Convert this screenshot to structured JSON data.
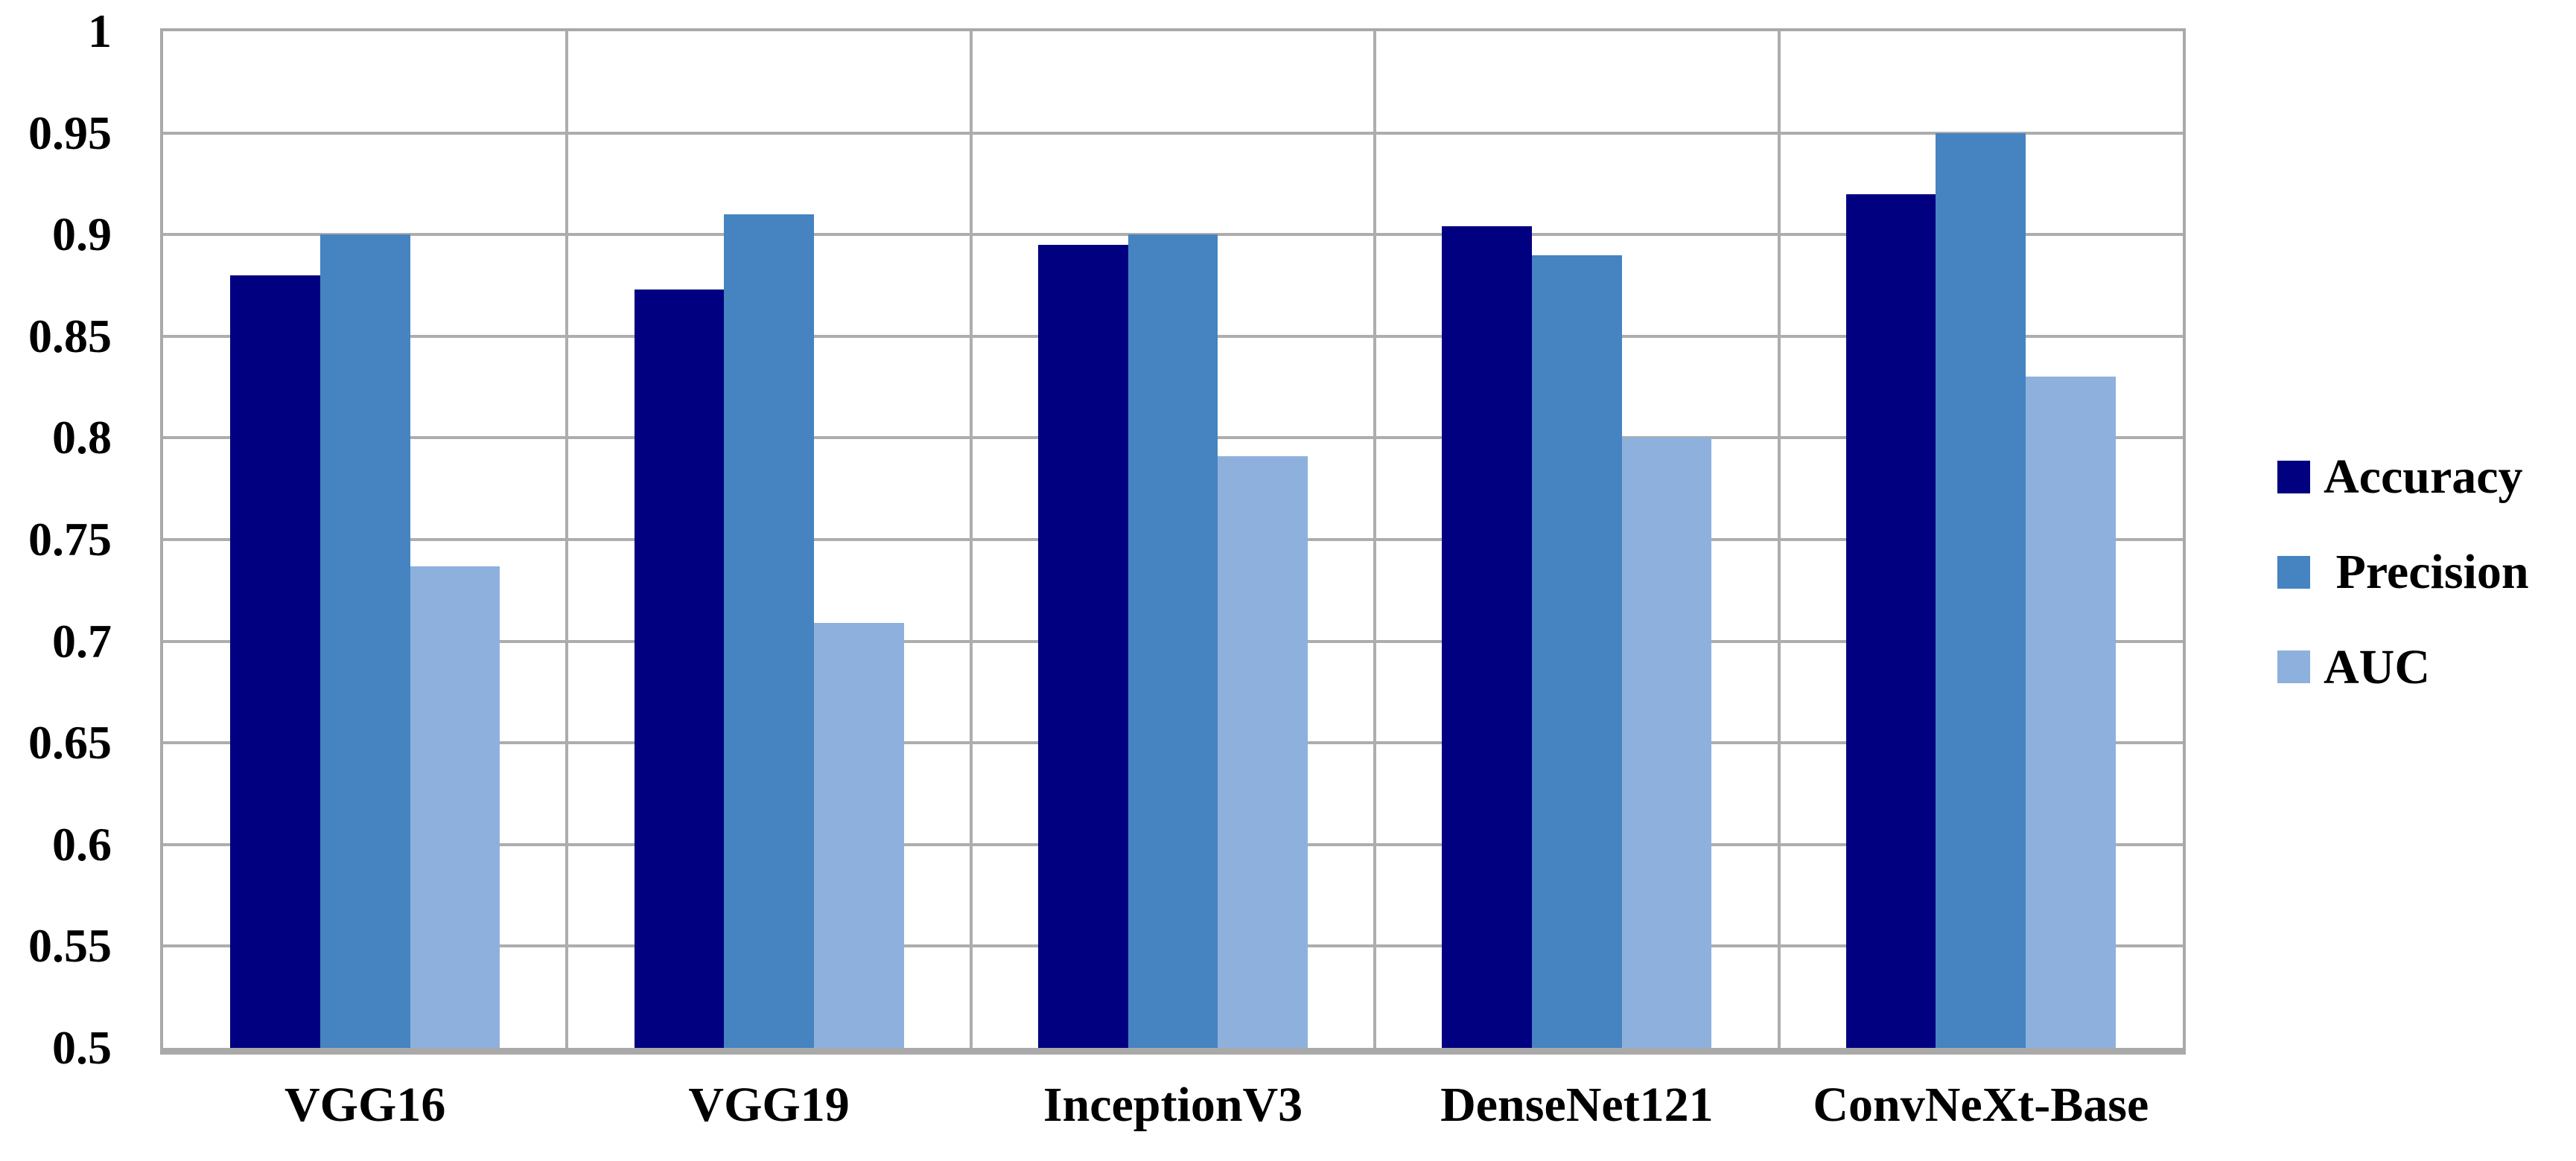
{
  "chart_data": {
    "type": "bar",
    "title": "",
    "xlabel": "",
    "ylabel": "",
    "categories": [
      "VGG16",
      "VGG19",
      "InceptionV3",
      "DenseNet121",
      "ConvNeXt-Base"
    ],
    "series": [
      {
        "name": "Accuracy",
        "color": "#000080",
        "values": [
          0.88,
          0.873,
          0.895,
          0.904,
          0.92
        ]
      },
      {
        "name": "Precision",
        "color": "#4683C1",
        "values": [
          0.9,
          0.91,
          0.9,
          0.89,
          0.95
        ]
      },
      {
        "name": "AUC",
        "color": "#8DB1DC",
        "values": [
          0.737,
          0.709,
          0.791,
          0.8,
          0.83
        ]
      }
    ],
    "ylim": [
      0.5,
      1.0
    ],
    "y_tick_labels": [
      "1",
      "0.95",
      "0.9",
      "0.85",
      "0.8",
      "0.75",
      "0.7",
      "0.65",
      "0.6",
      "0.55",
      "0.5"
    ],
    "y_tick_values": [
      1.0,
      0.95,
      0.9,
      0.85,
      0.8,
      0.75,
      0.7,
      0.65,
      0.6,
      0.55,
      0.5
    ],
    "grid": true,
    "legend_position": "right",
    "legend_labels": [
      "Accuracy",
      " Precision",
      "AUC"
    ]
  },
  "style": {
    "grid_color": "#adadad",
    "axis_color": "#a9a9a9",
    "background": "#ffffff",
    "text_color": "#000000"
  }
}
